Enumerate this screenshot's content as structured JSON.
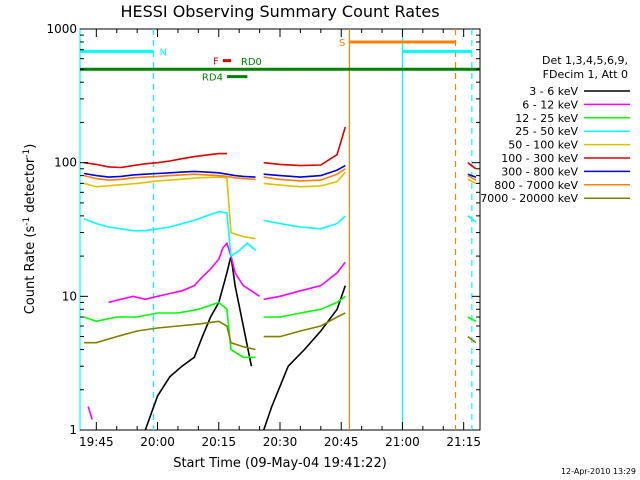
{
  "chart_data": {
    "type": "line",
    "title": "HESSI Observing Summary Count Rates",
    "xlabel": "Start Time (09-May-04 19:41:22)",
    "ylabel_main": "Count Rate (s",
    "ylabel_sup1": "-1",
    "ylabel_mid": " detector",
    "ylabel_sup2": "-1",
    "ylabel_end": ")",
    "y_scale": "log",
    "xlim": [
      "19:41",
      "21:19"
    ],
    "ylim": [
      1,
      1000
    ],
    "x_ticks": [
      "19:45",
      "20:00",
      "20:15",
      "20:30",
      "20:45",
      "21:00",
      "21:15"
    ],
    "y_ticks": [
      "1",
      "10",
      "100",
      "1000"
    ],
    "grid": false,
    "legend": {
      "placement": "right",
      "header": [
        "Det 1,3,4,5,6,9,",
        "FDecim 1, Att 0"
      ],
      "entries": [
        {
          "label": "3 - 6 keV",
          "color": "#000000"
        },
        {
          "label": "6 - 12 keV",
          "color": "#ff00ff"
        },
        {
          "label": "12 - 25 keV",
          "color": "#00ff00"
        },
        {
          "label": "25 - 50 keV",
          "color": "#00ffff"
        },
        {
          "label": "50 - 100 keV",
          "color": "#e0c000"
        },
        {
          "label": "100 - 300 keV",
          "color": "#e00000"
        },
        {
          "label": "300 - 800 keV",
          "color": "#0000e0"
        },
        {
          "label": "800 - 7000 keV",
          "color": "#ff7f00"
        },
        {
          "label": "7000 - 20000 keV",
          "color": "#808000"
        }
      ]
    },
    "series": [
      {
        "name": "3 - 6 keV",
        "color": "#000000",
        "segments": [
          [
            [
              "19:57",
              1
            ],
            [
              "20:00",
              1.8
            ],
            [
              "20:03",
              2.5
            ],
            [
              "20:06",
              3
            ],
            [
              "20:09",
              3.5
            ],
            [
              "20:11",
              5
            ],
            [
              "20:13",
              7
            ],
            [
              "20:15",
              9
            ],
            [
              "20:17",
              15
            ],
            [
              "20:18",
              20
            ],
            [
              "20:19",
              12
            ],
            [
              "20:21",
              6
            ],
            [
              "20:23",
              3
            ]
          ],
          [
            [
              "20:26",
              1
            ],
            [
              "20:28",
              1.5
            ],
            [
              "20:32",
              3
            ],
            [
              "20:36",
              4
            ],
            [
              "20:40",
              5.5
            ],
            [
              "20:44",
              8
            ],
            [
              "20:46",
              12
            ]
          ]
        ]
      },
      {
        "name": "6 - 12 keV",
        "color": "#ff00ff",
        "segments": [
          [
            [
              "19:43",
              1.5
            ],
            [
              "19:44",
              1.2
            ]
          ],
          [
            [
              "19:48",
              9
            ],
            [
              "19:51",
              9.5
            ],
            [
              "19:54",
              10
            ],
            [
              "19:57",
              9.5
            ],
            [
              "20:00",
              10
            ],
            [
              "20:03",
              10.5
            ],
            [
              "20:06",
              11
            ],
            [
              "20:09",
              12
            ],
            [
              "20:11",
              14
            ],
            [
              "20:13",
              16
            ],
            [
              "20:15",
              19
            ],
            [
              "20:16",
              23
            ],
            [
              "20:17",
              25
            ],
            [
              "20:18",
              20
            ],
            [
              "20:19",
              15
            ],
            [
              "20:21",
              12
            ],
            [
              "20:23",
              11
            ],
            [
              "20:25",
              10
            ]
          ],
          [
            [
              "20:26",
              9.5
            ],
            [
              "20:30",
              10
            ],
            [
              "20:35",
              11
            ],
            [
              "20:40",
              12
            ],
            [
              "20:44",
              15
            ],
            [
              "20:46",
              18
            ]
          ]
        ]
      },
      {
        "name": "12 - 25 keV",
        "color": "#00ff00",
        "segments": [
          [
            [
              "19:42",
              7
            ],
            [
              "19:45",
              6.5
            ],
            [
              "19:50",
              7
            ],
            [
              "19:55",
              7
            ],
            [
              "20:00",
              7.5
            ],
            [
              "20:05",
              7.5
            ],
            [
              "20:10",
              8
            ],
            [
              "20:15",
              9
            ],
            [
              "20:17",
              8
            ],
            [
              "20:18",
              4
            ],
            [
              "20:21",
              3.5
            ],
            [
              "20:24",
              3.5
            ]
          ],
          [
            [
              "20:26",
              7
            ],
            [
              "20:30",
              7
            ],
            [
              "20:35",
              7.5
            ],
            [
              "20:40",
              8
            ],
            [
              "20:44",
              9
            ],
            [
              "20:46",
              10
            ]
          ],
          [
            [
              "21:16",
              7
            ],
            [
              "21:18",
              6.5
            ]
          ]
        ]
      },
      {
        "name": "25 - 50 keV",
        "color": "#00ffff",
        "segments": [
          [
            [
              "19:42",
              38
            ],
            [
              "19:45",
              35
            ],
            [
              "19:48",
              33
            ],
            [
              "19:51",
              32
            ],
            [
              "19:54",
              31
            ],
            [
              "19:57",
              31
            ],
            [
              "20:00",
              32
            ],
            [
              "20:03",
              33
            ],
            [
              "20:06",
              35
            ],
            [
              "20:09",
              37
            ],
            [
              "20:12",
              40
            ],
            [
              "20:15",
              43
            ],
            [
              "20:17",
              42
            ],
            [
              "20:18",
              20
            ],
            [
              "20:20",
              22
            ],
            [
              "20:22",
              25
            ],
            [
              "20:24",
              22
            ]
          ],
          [
            [
              "20:26",
              37
            ],
            [
              "20:30",
              35
            ],
            [
              "20:35",
              33
            ],
            [
              "20:40",
              32
            ],
            [
              "20:44",
              35
            ],
            [
              "20:46",
              40
            ]
          ],
          [
            [
              "21:16",
              40
            ],
            [
              "21:18",
              36
            ]
          ]
        ]
      },
      {
        "name": "50 - 100 keV",
        "color": "#e0c000",
        "segments": [
          [
            [
              "19:42",
              70
            ],
            [
              "19:45",
              66
            ],
            [
              "19:50",
              68
            ],
            [
              "19:55",
              70
            ],
            [
              "20:00",
              73
            ],
            [
              "20:05",
              75
            ],
            [
              "20:10",
              77
            ],
            [
              "20:15",
              78
            ],
            [
              "20:17",
              77
            ],
            [
              "20:18",
              30
            ],
            [
              "20:21",
              28
            ],
            [
              "20:24",
              27
            ]
          ],
          [
            [
              "20:26",
              70
            ],
            [
              "20:30",
              68
            ],
            [
              "20:35",
              66
            ],
            [
              "20:40",
              67
            ],
            [
              "20:44",
              72
            ],
            [
              "20:46",
              85
            ]
          ],
          [
            [
              "21:16",
              75
            ],
            [
              "21:18",
              70
            ]
          ]
        ]
      },
      {
        "name": "100 - 300 keV",
        "color": "#e00000",
        "segments": [
          [
            [
              "19:42",
              100
            ],
            [
              "19:45",
              97
            ],
            [
              "19:48",
              93
            ],
            [
              "19:51",
              92
            ],
            [
              "19:54",
              95
            ],
            [
              "19:57",
              98
            ],
            [
              "20:00",
              100
            ],
            [
              "20:03",
              103
            ],
            [
              "20:06",
              107
            ],
            [
              "20:09",
              111
            ],
            [
              "20:12",
              114
            ],
            [
              "20:15",
              117
            ],
            [
              "20:17",
              117
            ]
          ],
          [
            [
              "20:26",
              100
            ],
            [
              "20:30",
              97
            ],
            [
              "20:35",
              95
            ],
            [
              "20:40",
              96
            ],
            [
              "20:44",
              115
            ],
            [
              "20:46",
              185
            ]
          ],
          [
            [
              "21:16",
              100
            ],
            [
              "21:18",
              90
            ]
          ]
        ]
      },
      {
        "name": "300 - 800 keV",
        "color": "#0000e0",
        "segments": [
          [
            [
              "19:42",
              83
            ],
            [
              "19:45",
              80
            ],
            [
              "19:48",
              78
            ],
            [
              "19:51",
              79
            ],
            [
              "19:54",
              81
            ],
            [
              "19:57",
              82
            ],
            [
              "20:00",
              83
            ],
            [
              "20:03",
              84
            ],
            [
              "20:06",
              85
            ],
            [
              "20:09",
              86
            ],
            [
              "20:12",
              85
            ],
            [
              "20:15",
              84
            ],
            [
              "20:17",
              82
            ],
            [
              "20:19",
              80
            ],
            [
              "20:21",
              79
            ],
            [
              "20:24",
              78
            ]
          ],
          [
            [
              "20:26",
              82
            ],
            [
              "20:30",
              80
            ],
            [
              "20:35",
              78
            ],
            [
              "20:40",
              80
            ],
            [
              "20:44",
              88
            ],
            [
              "20:46",
              95
            ]
          ],
          [
            [
              "21:16",
              82
            ],
            [
              "21:18",
              78
            ]
          ]
        ]
      },
      {
        "name": "800 - 7000 keV",
        "color": "#ff7f00",
        "segments": [
          [
            [
              "19:42",
              80
            ],
            [
              "19:45",
              76
            ],
            [
              "19:48",
              74
            ],
            [
              "19:51",
              75
            ],
            [
              "19:54",
              77
            ],
            [
              "19:57",
              78
            ],
            [
              "20:00",
              79
            ],
            [
              "20:03",
              80
            ],
            [
              "20:06",
              81
            ],
            [
              "20:09",
              82
            ],
            [
              "20:12",
              81
            ],
            [
              "20:15",
              80
            ],
            [
              "20:17",
              79
            ],
            [
              "20:19",
              77
            ],
            [
              "20:21",
              76
            ],
            [
              "20:24",
              75
            ]
          ],
          [
            [
              "20:26",
              78
            ],
            [
              "20:30",
              75
            ],
            [
              "20:35",
              73
            ],
            [
              "20:40",
              74
            ],
            [
              "20:44",
              82
            ],
            [
              "20:46",
              90
            ]
          ],
          [
            [
              "21:16",
              80
            ],
            [
              "21:18",
              74
            ]
          ]
        ]
      },
      {
        "name": "7000 - 20000 keV",
        "color": "#808000",
        "segments": [
          [
            [
              "19:42",
              4.5
            ],
            [
              "19:45",
              4.5
            ],
            [
              "19:50",
              5
            ],
            [
              "19:55",
              5.5
            ],
            [
              "20:00",
              5.8
            ],
            [
              "20:05",
              6
            ],
            [
              "20:10",
              6.2
            ],
            [
              "20:15",
              6.5
            ],
            [
              "20:17",
              6
            ],
            [
              "20:18",
              4.5
            ],
            [
              "20:21",
              4.2
            ],
            [
              "20:24",
              4
            ]
          ],
          [
            [
              "20:26",
              5
            ],
            [
              "20:30",
              5
            ],
            [
              "20:35",
              5.5
            ],
            [
              "20:40",
              6
            ],
            [
              "20:44",
              7
            ],
            [
              "20:46",
              7.5
            ]
          ],
          [
            [
              "21:16",
              5
            ],
            [
              "21:18",
              4.5
            ]
          ]
        ]
      }
    ],
    "vertical_markers": [
      {
        "time": "19:41",
        "color": "#00ffff",
        "style": "solid"
      },
      {
        "time": "19:59",
        "color": "#00ffff",
        "style": "dashed"
      },
      {
        "time": "20:47",
        "color": "#ff7f00",
        "style": "solid"
      },
      {
        "time": "21:00",
        "color": "#00ffff",
        "style": "solid"
      },
      {
        "time": "21:13",
        "color": "#ff7f00",
        "style": "dashed"
      },
      {
        "time": "21:17",
        "color": "#00ffff",
        "style": "dashed"
      }
    ],
    "status_bars": [
      {
        "label": "N",
        "color": "#00ffff",
        "start": "19:41",
        "end": "19:59",
        "level": 680,
        "label_side": "right"
      },
      {
        "label": "S",
        "color": "#ff7f00",
        "start": "20:47",
        "end": "21:13",
        "level": 800,
        "label_side": "left"
      },
      {
        "label": "",
        "color": "#00ffff",
        "start": "21:00",
        "end": "21:17",
        "level": 680,
        "label_side": "none"
      },
      {
        "label": "F",
        "color": "#e00000",
        "start": "20:16",
        "end": "20:18",
        "level": 580,
        "label_side": "left"
      },
      {
        "label": "RD0",
        "color": "#008000",
        "start": "19:41",
        "end": "21:19",
        "level": 500,
        "label_side": "label-above-center"
      },
      {
        "label": "RD4",
        "color": "#008000",
        "start": "20:17",
        "end": "20:22",
        "level": 440,
        "label_side": "left"
      }
    ],
    "timestamp": "12-Apr-2010 13:29"
  }
}
